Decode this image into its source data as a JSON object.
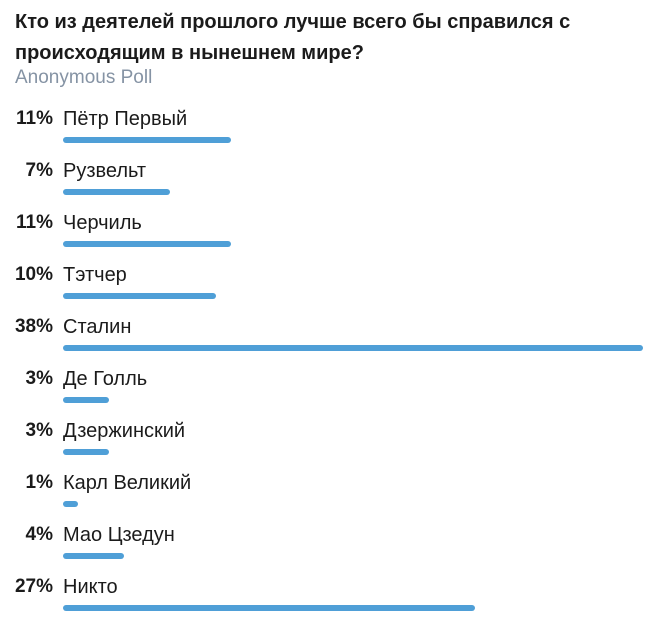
{
  "poll": {
    "question": "Кто из деятелей прошлого лучше всего бы справился с происходящим в нынешнем мире?",
    "type": "Anonymous Poll",
    "bar_color": "#4f9fd7",
    "options": [
      {
        "percent": "11%",
        "label": "Пётр Первый",
        "value": 11
      },
      {
        "percent": "7%",
        "label": "Рузвельт",
        "value": 7
      },
      {
        "percent": "11%",
        "label": "Черчиль",
        "value": 11
      },
      {
        "percent": "10%",
        "label": "Тэтчер",
        "value": 10
      },
      {
        "percent": "38%",
        "label": "Сталин",
        "value": 38
      },
      {
        "percent": "3%",
        "label": "Де Голль",
        "value": 3
      },
      {
        "percent": "3%",
        "label": "Дзержинский",
        "value": 3
      },
      {
        "percent": "1%",
        "label": "Карл Великий",
        "value": 1
      },
      {
        "percent": "4%",
        "label": "Мао Цзедун",
        "value": 4
      },
      {
        "percent": "27%",
        "label": "Никто",
        "value": 27
      }
    ]
  }
}
